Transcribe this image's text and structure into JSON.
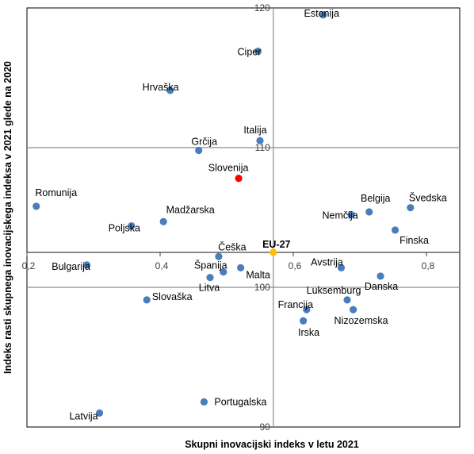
{
  "chart_data": {
    "type": "scatter",
    "title": "",
    "xlabel": "Skupni inovacijski indeks v letu 2021",
    "ylabel": "Indeks rasti skupnega inovacijskega indeksa v 2021 glede na 2020",
    "xlim": [
      0.2,
      0.85
    ],
    "ylim": [
      90,
      120
    ],
    "x_ticks": [
      "0,2",
      "0,4",
      "0,6",
      "0,8"
    ],
    "x_tick_values": [
      0.2,
      0.4,
      0.6,
      0.8
    ],
    "y_ticks": [
      "90",
      "100",
      "110",
      "120"
    ],
    "y_tick_values": [
      90,
      100,
      110,
      120
    ],
    "x_axis_crosses_y": 102.5,
    "quadrant_lines": {
      "x": 0.57,
      "y": [
        100,
        110
      ]
    },
    "grid": false,
    "colors": {
      "default_point": "#4a7ebb",
      "slovenia": "#ff0000",
      "eu27": "#ffc000"
    },
    "points": [
      {
        "name": "Estonija",
        "x": 0.645,
        "y": 119.5,
        "color": "default_point"
      },
      {
        "name": "Ciper",
        "x": 0.547,
        "y": 116.9,
        "color": "default_point"
      },
      {
        "name": "Hrvaška",
        "x": 0.415,
        "y": 114.1,
        "color": "default_point"
      },
      {
        "name": "Italija",
        "x": 0.55,
        "y": 110.5,
        "color": "default_point"
      },
      {
        "name": "Grčija",
        "x": 0.458,
        "y": 109.8,
        "color": "default_point"
      },
      {
        "name": "Slovenija",
        "x": 0.518,
        "y": 107.8,
        "color": "slovenia"
      },
      {
        "name": "Romunija",
        "x": 0.214,
        "y": 105.8,
        "color": "default_point"
      },
      {
        "name": "Švedska",
        "x": 0.776,
        "y": 105.7,
        "color": "default_point"
      },
      {
        "name": "Belgija",
        "x": 0.714,
        "y": 105.4,
        "color": "default_point"
      },
      {
        "name": "Nemčija",
        "x": 0.687,
        "y": 105.2,
        "color": "default_point"
      },
      {
        "name": "Madžarska",
        "x": 0.405,
        "y": 104.7,
        "color": "default_point"
      },
      {
        "name": "Poljska",
        "x": 0.357,
        "y": 104.4,
        "color": "default_point"
      },
      {
        "name": "Finska",
        "x": 0.753,
        "y": 104.1,
        "color": "default_point"
      },
      {
        "name": "EU-27",
        "x": 0.57,
        "y": 102.5,
        "color": "eu27"
      },
      {
        "name": "Češka",
        "x": 0.488,
        "y": 102.2,
        "color": "default_point"
      },
      {
        "name": "Bulgarija",
        "x": 0.29,
        "y": 101.6,
        "color": "default_point"
      },
      {
        "name": "Malta",
        "x": 0.521,
        "y": 101.4,
        "color": "default_point"
      },
      {
        "name": "Avstrija",
        "x": 0.672,
        "y": 101.4,
        "color": "default_point"
      },
      {
        "name": "Španija",
        "x": 0.495,
        "y": 101.1,
        "color": "default_point"
      },
      {
        "name": "Litva",
        "x": 0.475,
        "y": 100.7,
        "color": "default_point"
      },
      {
        "name": "Danska",
        "x": 0.731,
        "y": 100.8,
        "color": "default_point"
      },
      {
        "name": "Slovaška",
        "x": 0.38,
        "y": 99.1,
        "color": "default_point"
      },
      {
        "name": "Luksemburg",
        "x": 0.681,
        "y": 99.1,
        "color": "default_point"
      },
      {
        "name": "Francija",
        "x": 0.62,
        "y": 98.4,
        "color": "default_point"
      },
      {
        "name": "Nizozemska",
        "x": 0.69,
        "y": 98.4,
        "color": "default_point"
      },
      {
        "name": "Irska",
        "x": 0.615,
        "y": 97.6,
        "color": "default_point"
      },
      {
        "name": "Portugalska",
        "x": 0.466,
        "y": 91.8,
        "color": "default_point"
      },
      {
        "name": "Latvija",
        "x": 0.309,
        "y": 91.0,
        "color": "default_point"
      }
    ]
  }
}
